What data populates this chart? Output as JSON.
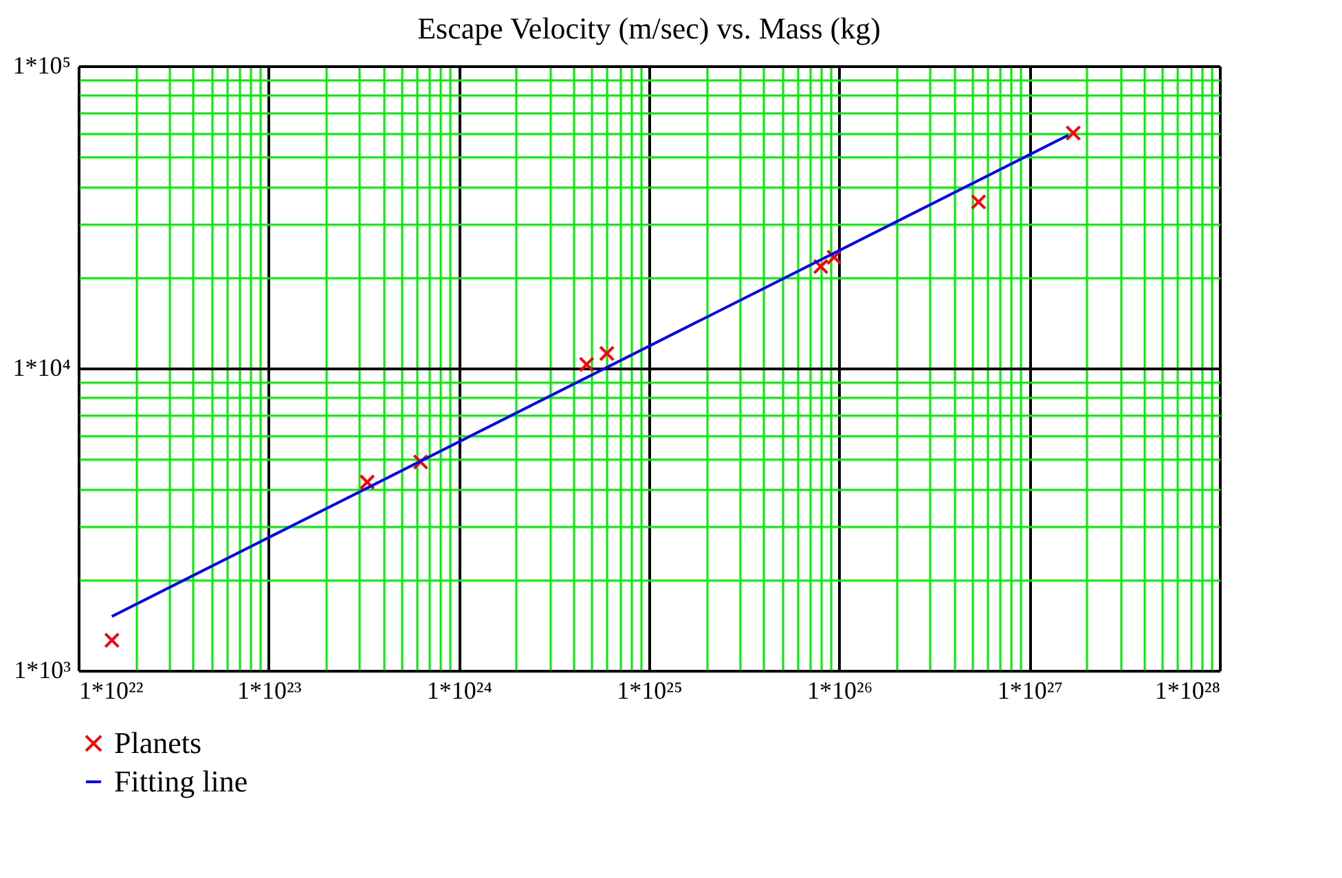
{
  "chart_data": {
    "type": "scatter",
    "title": "Escape Velocity (m/sec) vs. Mass (kg)",
    "log": "xy",
    "grid": true,
    "legend": "bottom left",
    "xlim": [
      1e+22,
      1e+28
    ],
    "ylim": [
      1000,
      100000
    ],
    "xticks": [
      {
        "value": 1e+22,
        "label": "1*10²²"
      },
      {
        "value": 2e+22,
        "label": null
      },
      {
        "value": 3e+22,
        "label": null
      },
      {
        "value": 4e+22,
        "label": null
      },
      {
        "value": 5e+22,
        "label": null
      },
      {
        "value": 6e+22,
        "label": null
      },
      {
        "value": 7e+22,
        "label": null
      },
      {
        "value": 8e+22,
        "label": null
      },
      {
        "value": 9e+22,
        "label": null
      },
      {
        "value": 1e+23,
        "label": "1*10²³"
      },
      {
        "value": 2e+23,
        "label": null
      },
      {
        "value": 3e+23,
        "label": null
      },
      {
        "value": 4e+23,
        "label": null
      },
      {
        "value": 5e+23,
        "label": null
      },
      {
        "value": 6e+23,
        "label": null
      },
      {
        "value": 7e+23,
        "label": null
      },
      {
        "value": 8e+23,
        "label": null
      },
      {
        "value": 9e+23,
        "label": null
      },
      {
        "value": 1e+24,
        "label": "1*10²⁴"
      },
      {
        "value": 2e+24,
        "label": null
      },
      {
        "value": 3e+24,
        "label": null
      },
      {
        "value": 4e+24,
        "label": null
      },
      {
        "value": 5e+24,
        "label": null
      },
      {
        "value": 6e+24,
        "label": null
      },
      {
        "value": 7e+24,
        "label": null
      },
      {
        "value": 8e+24,
        "label": null
      },
      {
        "value": 9e+24,
        "label": null
      },
      {
        "value": 1e+25,
        "label": "1*10²⁵"
      },
      {
        "value": 2e+25,
        "label": null
      },
      {
        "value": 3e+25,
        "label": null
      },
      {
        "value": 4e+25,
        "label": null
      },
      {
        "value": 5e+25,
        "label": null
      },
      {
        "value": 6e+25,
        "label": null
      },
      {
        "value": 7e+25,
        "label": null
      },
      {
        "value": 8e+25,
        "label": null
      },
      {
        "value": 9e+25,
        "label": null
      },
      {
        "value": 1e+26,
        "label": "1*10²⁶"
      },
      {
        "value": 2e+26,
        "label": null
      },
      {
        "value": 3e+26,
        "label": null
      },
      {
        "value": 4e+26,
        "label": null
      },
      {
        "value": 5e+26,
        "label": null
      },
      {
        "value": 6e+26,
        "label": null
      },
      {
        "value": 7e+26,
        "label": null
      },
      {
        "value": 8e+26,
        "label": null
      },
      {
        "value": 9e+26,
        "label": null
      },
      {
        "value": 1e+27,
        "label": "1*10²⁷"
      },
      {
        "value": 2e+27,
        "label": null
      },
      {
        "value": 3e+27,
        "label": null
      },
      {
        "value": 4e+27,
        "label": null
      },
      {
        "value": 5e+27,
        "label": null
      },
      {
        "value": 6e+27,
        "label": null
      },
      {
        "value": 7e+27,
        "label": null
      },
      {
        "value": 8e+27,
        "label": null
      },
      {
        "value": 9e+27,
        "label": null
      },
      {
        "value": 1e+28,
        "label": "1*10²⁸"
      }
    ],
    "yticks": [
      {
        "value": 1000,
        "label": "1*10³"
      },
      {
        "value": 2000,
        "label": null
      },
      {
        "value": 3000,
        "label": null
      },
      {
        "value": 4000,
        "label": null
      },
      {
        "value": 5000,
        "label": null
      },
      {
        "value": 6000,
        "label": null
      },
      {
        "value": 7000,
        "label": null
      },
      {
        "value": 8000,
        "label": null
      },
      {
        "value": 9000,
        "label": null
      },
      {
        "value": 10000,
        "label": "1*10⁴"
      },
      {
        "value": 20000,
        "label": null
      },
      {
        "value": 30000,
        "label": null
      },
      {
        "value": 40000,
        "label": null
      },
      {
        "value": 50000,
        "label": null
      },
      {
        "value": 60000,
        "label": null
      },
      {
        "value": 70000,
        "label": null
      },
      {
        "value": 80000,
        "label": null
      },
      {
        "value": 90000,
        "label": null
      },
      {
        "value": 100000,
        "label": "1*10⁵"
      }
    ],
    "series": [
      {
        "name": "Planets",
        "marker": "cross",
        "color": "#ff0000",
        "x": [
          1.5e+22,
          3.3e+23,
          6.3e+23,
          4.7e+24,
          6e+24,
          8e+25,
          9.4e+25,
          5.4e+26,
          1.7e+27
        ],
        "values": [
          1260,
          4200,
          4900,
          10300,
          11200,
          21700,
          23300,
          35500,
          60000
        ]
      },
      {
        "name": "Fitting line",
        "type": "line",
        "line_style": "solid",
        "color": "#0000ff",
        "x": [
          1.5e+22,
          1.6e+27
        ],
        "values": [
          1510,
          59000
        ]
      }
    ]
  }
}
